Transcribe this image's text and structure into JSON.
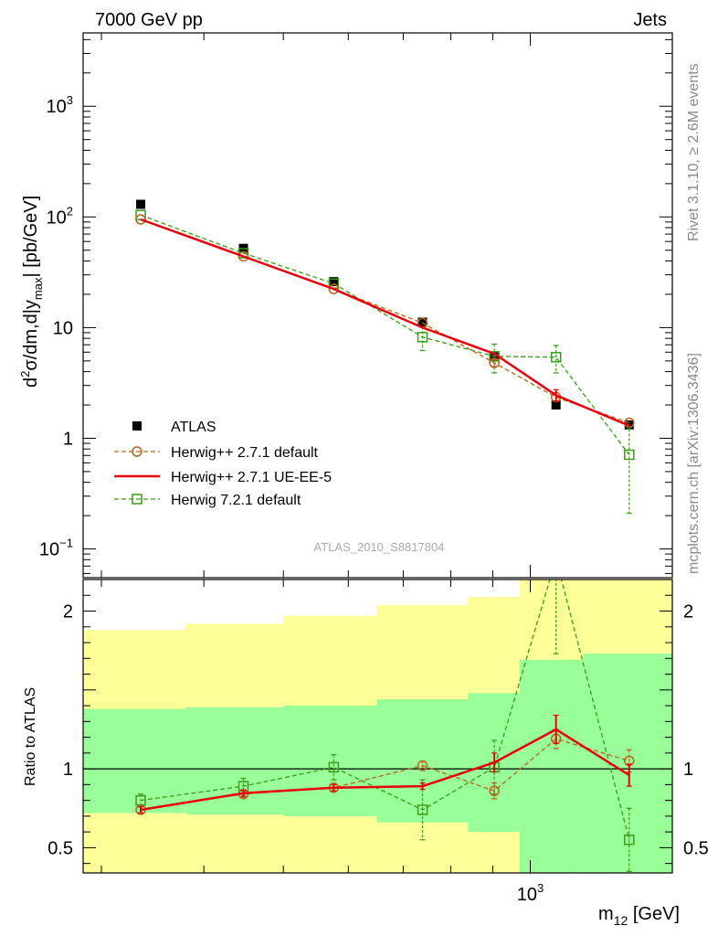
{
  "chart_data": {
    "type": "scatter",
    "title_left": "7000 GeV pp",
    "title_right": "Jets",
    "analysis": "ATLAS_2010_S8817804",
    "side_labels": [
      "Rivet 3.1.10, ≥ 2.6M events",
      "mcplots.cern.ch [arXiv:1306.3436]"
    ],
    "ylabel_main": "d²σ/dm,d|y_max| [pb/GeV]",
    "ylabel_ratio": "Ratio to ATLAS",
    "xlabel": "m12 [GeV]",
    "x_scale": "log",
    "y_scale_main": "log",
    "xlim": [
      285,
      1490
    ],
    "ylim_main": [
      0.055,
      4600
    ],
    "ylim_ratio": [
      0.34,
      2.2
    ],
    "x_ticks_labeled": [
      "10^3"
    ],
    "y_ticks_main": [
      "10^-1",
      "1",
      "10",
      "10^2",
      "10^3"
    ],
    "y_ticks_ratio": [
      "0.5",
      "1",
      "2"
    ],
    "bins": [
      {
        "lo": 285,
        "hi": 380
      },
      {
        "lo": 380,
        "hi": 500
      },
      {
        "lo": 500,
        "hi": 650
      },
      {
        "lo": 650,
        "hi": 840
      },
      {
        "lo": 840,
        "hi": 970
      },
      {
        "lo": 970,
        "hi": 1160
      },
      {
        "lo": 1160,
        "hi": 1490
      }
    ],
    "x": [
      335,
      447,
      576,
      739,
      904,
      1075,
      1320
    ],
    "series": [
      {
        "name": "ATLAS",
        "color": "#000000",
        "marker": "filled-square",
        "values": [
          130,
          52,
          26,
          11.2,
          5.5,
          2.0,
          1.32
        ],
        "ratio_band_inner": [
          [
            0.72,
            1.38
          ],
          [
            0.71,
            1.39
          ],
          [
            0.7,
            1.4
          ],
          [
            0.66,
            1.44
          ],
          [
            0.6,
            1.48
          ],
          [
            0.34,
            1.69
          ],
          [
            0.34,
            1.73
          ]
        ],
        "ratio_band_outer": [
          [
            0.34,
            1.88
          ],
          [
            0.34,
            1.92
          ],
          [
            0.34,
            1.97
          ],
          [
            0.34,
            2.04
          ],
          [
            0.34,
            2.09
          ],
          [
            0.34,
            2.2
          ],
          [
            0.34,
            2.2
          ]
        ]
      },
      {
        "name": "Herwig++ 2.7.1 default",
        "color": "#b5651d",
        "marker": "open-circle",
        "style": "dashed",
        "values": [
          95,
          44,
          22.3,
          11.0,
          4.8,
          2.35,
          1.38
        ],
        "errors": [
          0,
          0,
          0,
          0,
          0.35,
          0,
          0
        ],
        "ratio": [
          0.74,
          0.84,
          0.88,
          1.02,
          0.86,
          1.19,
          1.05
        ],
        "ratio_errors": [
          0.02,
          0.02,
          0.02,
          0.03,
          0.05,
          0.06,
          0.07
        ]
      },
      {
        "name": "Herwig++ 2.7.1 UE-EE-5",
        "color": "#e8000b",
        "marker": "line",
        "style": "solid",
        "values": [
          95,
          44,
          22.3,
          10.0,
          5.8,
          2.45,
          1.3
        ],
        "errors": [
          0,
          0,
          0,
          0,
          0,
          0.3,
          0
        ],
        "ratio": [
          0.74,
          0.845,
          0.88,
          0.89,
          1.04,
          1.25,
          0.96
        ],
        "ratio_errors": [
          0.02,
          0.02,
          0.02,
          0.02,
          0.06,
          0.09,
          0.07
        ]
      },
      {
        "name": "Herwig 7.2.1 default",
        "color": "#3a9a19",
        "marker": "open-square",
        "style": "dashed",
        "values": [
          104,
          47,
          25,
          8.2,
          5.5,
          5.4,
          0.71
        ],
        "errors": [
          0,
          0,
          0,
          2.0,
          1.6,
          1.5,
          0.5
        ],
        "ratio": [
          0.8,
          0.89,
          1.01,
          0.74,
          1.01,
          2.33,
          0.55
        ],
        "ratio_errors": [
          0.04,
          0.05,
          0.08,
          0.19,
          0.17,
          0.6,
          0.2
        ]
      }
    ]
  }
}
